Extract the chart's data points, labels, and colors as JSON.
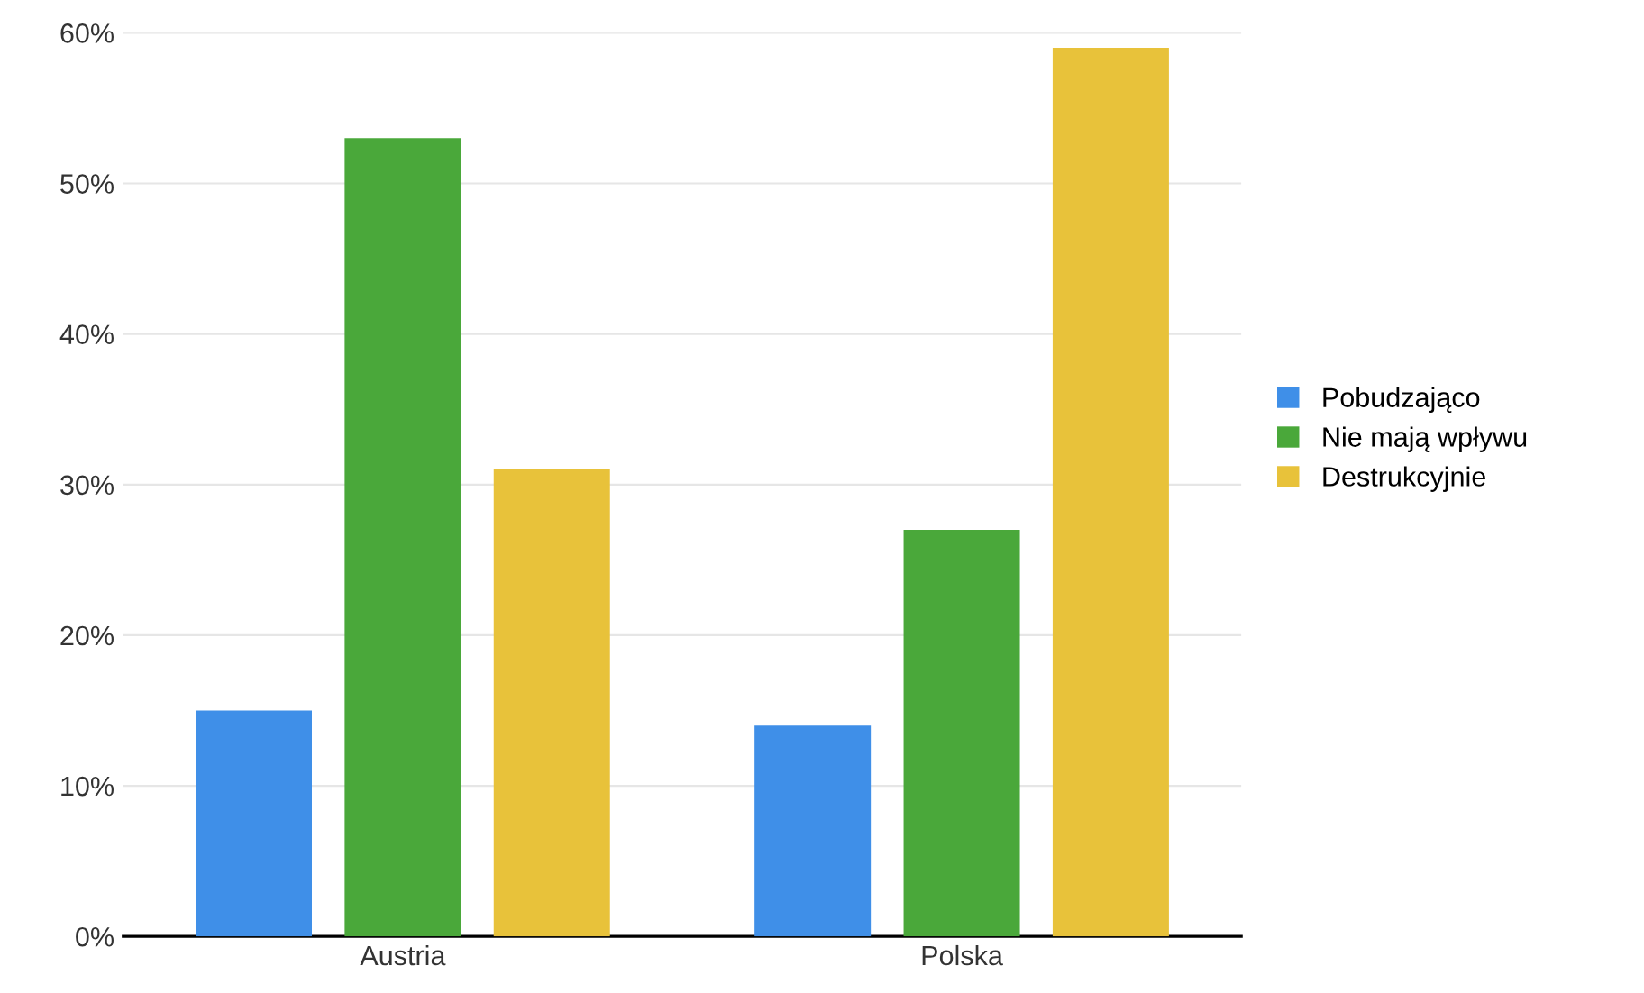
{
  "chart_data": {
    "type": "bar",
    "categories": [
      "Austria",
      "Polska"
    ],
    "series": [
      {
        "name": "Pobudzająco",
        "color": "#3f8fe8",
        "values": [
          15,
          14
        ]
      },
      {
        "name": "Nie mają wpływu",
        "color": "#4aa83a",
        "values": [
          53,
          27
        ]
      },
      {
        "name": "Destrukcyjnie",
        "color": "#e8c23a",
        "values": [
          31,
          59
        ]
      }
    ],
    "ylim": [
      0,
      60
    ],
    "yticks": [
      {
        "value": 0,
        "label": "0%"
      },
      {
        "value": 10,
        "label": "10%"
      },
      {
        "value": 20,
        "label": "20%"
      },
      {
        "value": 30,
        "label": "30%"
      },
      {
        "value": 40,
        "label": "40%"
      },
      {
        "value": 50,
        "label": "50%"
      },
      {
        "value": 60,
        "label": "60%"
      }
    ],
    "grid": "y",
    "legend": "right"
  }
}
